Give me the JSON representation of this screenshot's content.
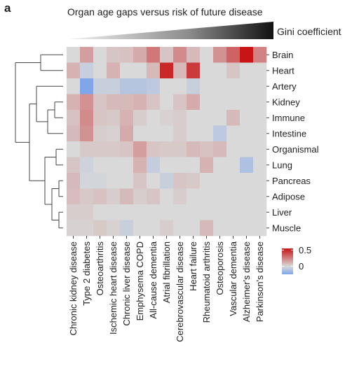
{
  "panel_label": "a",
  "gini_label": "Gini coefficient",
  "chart_data": {
    "type": "heatmap",
    "title": "Organ age gaps versus risk of future disease",
    "rows": [
      "Brain",
      "Heart",
      "Artery",
      "Kidney",
      "Immune",
      "Intestine",
      "Organismal",
      "Lung",
      "Pancreas",
      "Adipose",
      "Liver",
      "Muscle"
    ],
    "columns": [
      "Chronic kidney disease",
      "Type 2 diabetes",
      "Osteoarthritis",
      "Ischemic heart disease",
      "Chronic liver disease",
      "Emphysema COPD",
      "All-cause dementia",
      "Atrial fibrillation",
      "Cerebrovascular disease",
      "Heart failure",
      "Rheumatoid arthritis",
      "Osteoporosis",
      "Vascular dementia",
      "Alzheimer's disease",
      "Parkinson's disease"
    ],
    "values": [
      [
        0,
        0.15,
        0,
        0.05,
        0.06,
        0.12,
        0.25,
        0.05,
        0.2,
        0.08,
        0,
        0.18,
        0.3,
        0.55,
        0.22
      ],
      [
        0.1,
        -0.05,
        0,
        0.1,
        0,
        0,
        0.08,
        0.45,
        0.08,
        0.4,
        0,
        0,
        0.05,
        0,
        0
      ],
      [
        0,
        -0.25,
        -0.05,
        -0.05,
        -0.1,
        -0.1,
        -0.08,
        0,
        0,
        -0.05,
        0,
        0,
        0,
        0,
        0
      ],
      [
        0.1,
        0.18,
        0.05,
        0.08,
        0.08,
        0.1,
        0.05,
        0,
        0.05,
        0.12,
        0,
        0,
        0,
        0,
        0
      ],
      [
        0.06,
        0.2,
        0.05,
        0.04,
        0.1,
        0.03,
        0,
        0.02,
        0.03,
        0,
        0,
        0,
        0.08,
        0,
        0
      ],
      [
        0.08,
        0.18,
        0.03,
        0.02,
        0.12,
        0,
        0,
        0,
        0.03,
        0,
        0,
        -0.08,
        0,
        0,
        0
      ],
      [
        0,
        0.04,
        0.04,
        0.04,
        0.05,
        0.15,
        0.05,
        0.04,
        0.04,
        0.08,
        0.06,
        0.08,
        0,
        0,
        0
      ],
      [
        0.05,
        -0.03,
        0,
        0,
        0,
        0.1,
        -0.06,
        0,
        0,
        0,
        0.1,
        0,
        0,
        -0.12,
        0
      ],
      [
        0.08,
        -0.02,
        -0.02,
        0,
        0,
        0.05,
        0,
        -0.05,
        0.05,
        0.04,
        0,
        0,
        0,
        0,
        0
      ],
      [
        0.07,
        0.04,
        0.06,
        0.03,
        0.08,
        0.03,
        0.05,
        0,
        0.03,
        0,
        0,
        0,
        0,
        0,
        0
      ],
      [
        0.03,
        0.03,
        0,
        0,
        0,
        0,
        0,
        0,
        0,
        0,
        0,
        0,
        0,
        0,
        0
      ],
      [
        0.02,
        0.02,
        0.04,
        0.02,
        -0.05,
        0,
        0,
        0.03,
        0,
        0,
        0.08,
        0,
        0,
        0,
        0
      ]
    ],
    "legend": {
      "ticks": [
        0.5,
        0
      ],
      "tick_labels": [
        "0.5",
        "0"
      ],
      "range": [
        -0.25,
        0.55
      ]
    },
    "colors": {
      "low": "#7fa6e8",
      "zero": "#d9d9d9",
      "high": "#c81414"
    },
    "row_dendrogram": true,
    "gini_wedge": {
      "direction": "increasing left to right"
    }
  }
}
